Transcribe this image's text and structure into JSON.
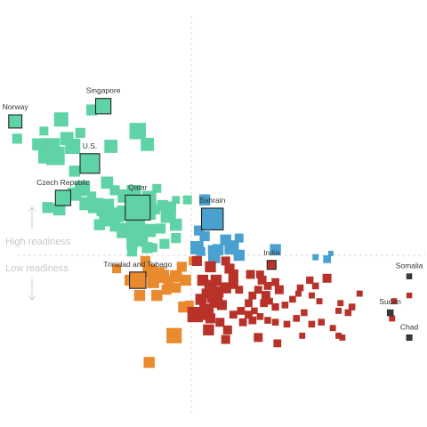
{
  "chart_data": {
    "type": "scatter",
    "title": "",
    "xlabel": "",
    "ylabel": "",
    "axes_shown": false,
    "grid": false,
    "reference_lines": {
      "vertical": true,
      "horizontal": true
    },
    "quadrant_labels": {
      "upper": "High readiness",
      "lower": "Low readiness"
    },
    "group_colors": {
      "teal": "#5fd3a6",
      "blue": "#4aa0cf",
      "orange": "#ea8a2e",
      "red": "#b8322a",
      "highlight_outline": "#222222"
    },
    "annotated": [
      {
        "name": "Singapore",
        "x": -0.46,
        "y": 0.78,
        "size": 0.55,
        "group": "teal"
      },
      {
        "name": "Norway",
        "x": -0.92,
        "y": 0.7,
        "size": 0.45,
        "group": "teal"
      },
      {
        "name": "U.S.",
        "x": -0.53,
        "y": 0.48,
        "size": 0.75,
        "group": "teal"
      },
      {
        "name": "Czech Republic",
        "x": -0.67,
        "y": 0.3,
        "size": 0.55,
        "group": "teal"
      },
      {
        "name": "Qatar",
        "x": -0.28,
        "y": 0.25,
        "size": 1.0,
        "group": "teal"
      },
      {
        "name": "Bahrain",
        "x": 0.11,
        "y": 0.19,
        "size": 0.85,
        "group": "blue"
      },
      {
        "name": "India",
        "x": 0.42,
        "y": -0.05,
        "size": 0.25,
        "group": "red"
      },
      {
        "name": "Trinidad and Tobago",
        "x": -0.28,
        "y": -0.13,
        "size": 0.6,
        "group": "orange"
      },
      {
        "name": "Somalia",
        "x": 1.14,
        "y": -0.11,
        "size": 0.08,
        "group": "red"
      },
      {
        "name": "Sudan",
        "x": 1.04,
        "y": -0.3,
        "size": 0.12,
        "group": "red"
      },
      {
        "name": "Chad",
        "x": 1.14,
        "y": -0.43,
        "size": 0.1,
        "group": "red"
      }
    ],
    "points": {
      "teal": [
        [
          -0.52,
          0.76,
          0.35
        ],
        [
          -0.68,
          0.71,
          0.5
        ],
        [
          -0.91,
          0.61,
          0.3
        ],
        [
          -0.77,
          0.65,
          0.25
        ],
        [
          -0.65,
          0.61,
          0.45
        ],
        [
          -0.58,
          0.64,
          0.3
        ],
        [
          -0.28,
          0.65,
          0.6
        ],
        [
          -0.23,
          0.58,
          0.45
        ],
        [
          -0.42,
          0.57,
          0.45
        ],
        [
          -0.62,
          0.57,
          0.55
        ],
        [
          -0.73,
          0.57,
          0.6
        ],
        [
          -0.8,
          0.58,
          0.4
        ],
        [
          -0.76,
          0.52,
          0.55
        ],
        [
          -0.71,
          0.52,
          0.7
        ],
        [
          -0.61,
          0.44,
          0.35
        ],
        [
          -0.44,
          0.38,
          0.4
        ],
        [
          -0.4,
          0.34,
          0.3
        ],
        [
          -0.57,
          0.35,
          0.55
        ],
        [
          -0.61,
          0.32,
          0.45
        ],
        [
          -0.75,
          0.25,
          0.35
        ],
        [
          -0.69,
          0.24,
          0.4
        ],
        [
          -0.52,
          0.31,
          0.25
        ],
        [
          -0.35,
          0.31,
          0.45
        ],
        [
          -0.3,
          0.33,
          0.5
        ],
        [
          -0.22,
          0.3,
          0.5
        ],
        [
          -0.15,
          0.26,
          0.35
        ],
        [
          -0.11,
          0.25,
          0.4
        ],
        [
          -0.02,
          0.29,
          0.25
        ],
        [
          -0.08,
          0.29,
          0.2
        ],
        [
          -0.18,
          0.35,
          0.25
        ],
        [
          -0.55,
          0.27,
          0.45
        ],
        [
          -0.5,
          0.26,
          0.55
        ],
        [
          -0.45,
          0.25,
          0.65
        ],
        [
          -0.44,
          0.21,
          0.6
        ],
        [
          -0.39,
          0.21,
          0.5
        ],
        [
          -0.35,
          0.22,
          0.55
        ],
        [
          -0.29,
          0.2,
          0.7
        ],
        [
          -0.22,
          0.22,
          0.45
        ],
        [
          -0.19,
          0.24,
          0.3
        ],
        [
          -0.12,
          0.21,
          0.55
        ],
        [
          -0.08,
          0.16,
          0.4
        ],
        [
          -0.48,
          0.16,
          0.35
        ],
        [
          -0.43,
          0.18,
          0.35
        ],
        [
          -0.4,
          0.15,
          0.3
        ],
        [
          -0.35,
          0.13,
          0.55
        ],
        [
          -0.29,
          0.12,
          0.7
        ],
        [
          -0.22,
          0.13,
          0.45
        ],
        [
          -0.16,
          0.14,
          0.3
        ],
        [
          -0.31,
          0.17,
          0.4
        ],
        [
          -0.26,
          0.08,
          0.45
        ],
        [
          -0.31,
          0.06,
          0.35
        ],
        [
          -0.23,
          0.04,
          0.35
        ],
        [
          -0.14,
          0.06,
          0.3
        ],
        [
          -0.08,
          0.09,
          0.3
        ],
        [
          -0.2,
          0.04,
          0.25
        ],
        [
          -0.31,
          0.02,
          0.3
        ],
        [
          -0.29,
          0.1,
          0.25
        ]
      ],
      "blue": [
        [
          0.07,
          0.29,
          0.35
        ],
        [
          0.25,
          0.09,
          0.25
        ],
        [
          0.07,
          0.1,
          0.3
        ],
        [
          0.04,
          0.13,
          0.3
        ],
        [
          0.18,
          0.08,
          0.35
        ],
        [
          0.22,
          0.05,
          0.35
        ],
        [
          0.2,
          0.03,
          0.3
        ],
        [
          0.11,
          0.03,
          0.25
        ],
        [
          0.03,
          0.04,
          0.45
        ],
        [
          0.14,
          0.03,
          0.35
        ],
        [
          0.12,
          -0.01,
          0.4
        ],
        [
          0.25,
          0.0,
          0.35
        ],
        [
          0.44,
          0.03,
          0.35
        ],
        [
          0.65,
          -0.01,
          0.12
        ],
        [
          0.71,
          -0.02,
          0.2
        ],
        [
          0.73,
          0.01,
          0.08
        ],
        [
          0.05,
          0.02,
          0.25
        ]
      ],
      "orange": [
        [
          -0.22,
          -0.08,
          0.45
        ],
        [
          -0.17,
          -0.09,
          0.35
        ],
        [
          -0.15,
          -0.11,
          0.45
        ],
        [
          -0.2,
          -0.14,
          0.4
        ],
        [
          -0.12,
          -0.13,
          0.3
        ],
        [
          -0.08,
          -0.11,
          0.4
        ],
        [
          -0.03,
          -0.13,
          0.35
        ],
        [
          -0.08,
          -0.17,
          0.3
        ],
        [
          -0.13,
          -0.18,
          0.3
        ],
        [
          -0.18,
          -0.21,
          0.35
        ],
        [
          -0.27,
          -0.21,
          0.35
        ],
        [
          -0.32,
          -0.13,
          0.35
        ],
        [
          -0.39,
          -0.07,
          0.25
        ],
        [
          -0.24,
          -0.03,
          0.3
        ],
        [
          -0.05,
          -0.06,
          0.3
        ],
        [
          0.01,
          -0.03,
          0.25
        ],
        [
          -0.04,
          -0.27,
          0.35
        ],
        [
          -0.09,
          -0.42,
          0.55
        ],
        [
          -0.22,
          -0.56,
          0.35
        ],
        [
          -0.01,
          -0.26,
          0.25
        ]
      ],
      "red": [
        [
          0.03,
          -0.03,
          0.3
        ],
        [
          0.1,
          -0.06,
          0.35
        ],
        [
          0.18,
          -0.03,
          0.25
        ],
        [
          0.2,
          -0.07,
          0.3
        ],
        [
          0.22,
          -0.1,
          0.3
        ],
        [
          0.31,
          -0.1,
          0.25
        ],
        [
          0.36,
          -0.1,
          0.2
        ],
        [
          0.37,
          -0.13,
          0.25
        ],
        [
          0.4,
          -0.16,
          0.2
        ],
        [
          0.44,
          -0.14,
          0.2
        ],
        [
          0.46,
          -0.18,
          0.25
        ],
        [
          0.35,
          -0.18,
          0.2
        ],
        [
          0.32,
          -0.21,
          0.2
        ],
        [
          0.39,
          -0.21,
          0.25
        ],
        [
          0.3,
          -0.25,
          0.2
        ],
        [
          0.38,
          -0.25,
          0.2
        ],
        [
          0.41,
          -0.24,
          0.15
        ],
        [
          0.44,
          -0.27,
          0.18
        ],
        [
          0.49,
          -0.26,
          0.15
        ],
        [
          0.53,
          -0.23,
          0.15
        ],
        [
          0.56,
          -0.2,
          0.12
        ],
        [
          0.57,
          -0.17,
          0.15
        ],
        [
          0.62,
          -0.13,
          0.18
        ],
        [
          0.65,
          -0.16,
          0.15
        ],
        [
          0.63,
          -0.21,
          0.12
        ],
        [
          0.67,
          -0.24,
          0.12
        ],
        [
          0.71,
          -0.12,
          0.25
        ],
        [
          0.78,
          -0.25,
          0.12
        ],
        [
          0.06,
          -0.13,
          0.35
        ],
        [
          0.1,
          -0.16,
          0.4
        ],
        [
          0.13,
          -0.13,
          0.35
        ],
        [
          0.14,
          -0.19,
          0.35
        ],
        [
          0.18,
          -0.17,
          0.35
        ],
        [
          0.22,
          -0.15,
          0.3
        ],
        [
          0.25,
          -0.18,
          0.2
        ],
        [
          0.08,
          -0.2,
          0.3
        ],
        [
          0.05,
          -0.23,
          0.35
        ],
        [
          0.11,
          -0.22,
          0.35
        ],
        [
          0.13,
          -0.24,
          0.45
        ],
        [
          0.16,
          -0.26,
          0.3
        ],
        [
          0.08,
          -0.29,
          0.5
        ],
        [
          0.07,
          -0.31,
          0.35
        ],
        [
          0.02,
          -0.31,
          0.55
        ],
        [
          0.1,
          -0.33,
          0.3
        ],
        [
          0.15,
          -0.35,
          0.25
        ],
        [
          0.22,
          -0.31,
          0.2
        ],
        [
          0.26,
          -0.29,
          0.2
        ],
        [
          0.3,
          -0.31,
          0.2
        ],
        [
          0.33,
          -0.29,
          0.15
        ],
        [
          0.36,
          -0.32,
          0.15
        ],
        [
          0.4,
          -0.34,
          0.15
        ],
        [
          0.27,
          -0.35,
          0.2
        ],
        [
          0.32,
          -0.34,
          0.2
        ],
        [
          0.19,
          -0.39,
          0.25
        ],
        [
          0.09,
          -0.39,
          0.35
        ],
        [
          0.18,
          -0.44,
          0.25
        ],
        [
          0.35,
          -0.43,
          0.25
        ],
        [
          0.44,
          -0.35,
          0.15
        ],
        [
          0.5,
          -0.36,
          0.15
        ],
        [
          0.55,
          -0.33,
          0.15
        ],
        [
          0.59,
          -0.3,
          0.15
        ],
        [
          0.63,
          -0.36,
          0.15
        ],
        [
          0.68,
          -0.35,
          0.15
        ],
        [
          0.58,
          -0.42,
          0.12
        ],
        [
          0.74,
          -0.38,
          0.12
        ],
        [
          0.77,
          -0.42,
          0.12
        ],
        [
          0.79,
          -0.43,
          0.12
        ],
        [
          0.77,
          -0.29,
          0.12
        ],
        [
          0.82,
          -0.3,
          0.15
        ],
        [
          0.84,
          -0.27,
          0.15
        ],
        [
          0.88,
          -0.2,
          0.12
        ],
        [
          1.06,
          -0.24,
          0.12
        ],
        [
          1.14,
          -0.21,
          0.1
        ],
        [
          1.05,
          -0.33,
          0.12
        ],
        [
          0.45,
          -0.46,
          0.2
        ]
      ]
    }
  }
}
